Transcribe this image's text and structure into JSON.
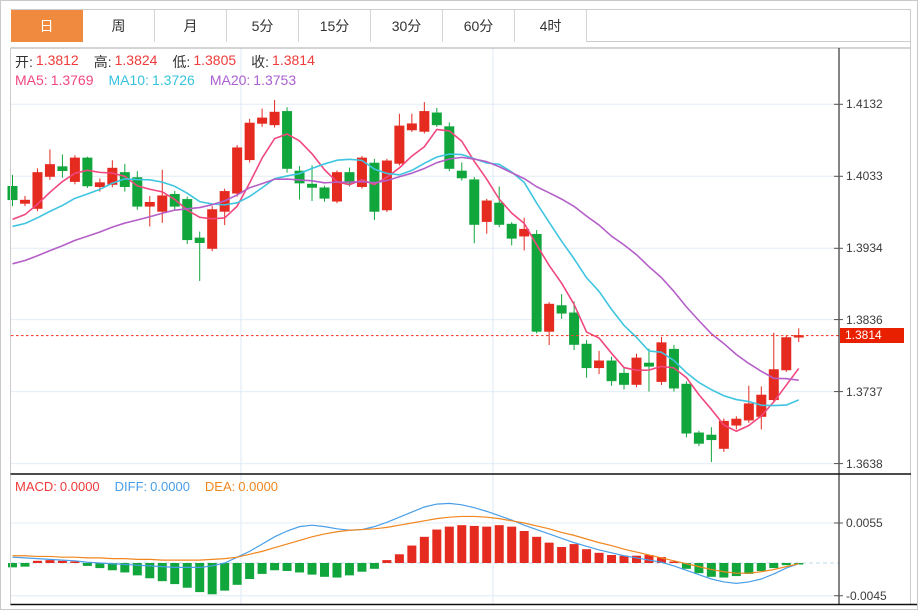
{
  "tabs": {
    "labels": [
      "日",
      "周",
      "月",
      "5分",
      "15分",
      "30分",
      "60分",
      "4时"
    ],
    "active": "日",
    "active_bg": "#f08a3e"
  },
  "legend": {
    "open_label": "开:",
    "open": "1.3812",
    "high_label": "高:",
    "high": "1.3824",
    "low_label": "低:",
    "low": "1.3805",
    "close_label": "收:",
    "close": "1.3814"
  },
  "ma_legend": {
    "ma5_label": "MA5:",
    "ma5": "1.3769",
    "ma10_label": "MA10:",
    "ma10": "1.3726",
    "ma20_label": "MA20:",
    "ma20": "1.3753"
  },
  "macd_legend": {
    "macd_label": "MACD:",
    "macd": "0.0000",
    "diff_label": "DIFF:",
    "diff": "0.0000",
    "dea_label": "DEA:",
    "dea": "0.0000"
  },
  "price_axis": {
    "labels": [
      "1.4132",
      "1.4033",
      "1.3934",
      "1.3836",
      "1.3737",
      "1.3638"
    ],
    "current": "1.3814"
  },
  "macd_axis": {
    "labels": [
      "0.0055",
      "-0.0045"
    ]
  },
  "colors": {
    "up": "#e52a20",
    "down": "#11a63c",
    "ma5": "#f0487e",
    "ma10": "#3fc5e0",
    "ma20": "#b55fc8",
    "diff": "#4a9ee8",
    "dea": "#f0861e",
    "tab_active": "#f08a3e",
    "price_tag_bg": "#e82000",
    "current_line": "#f4442e",
    "grid": "#e2ecf6",
    "vgrid": "#dde8f3",
    "zero_dash": "#bcd8ee",
    "axis_line": "#333333",
    "panel_border": "#111111",
    "side_border": "#cccccc",
    "red_text": "#ef3b3b"
  },
  "chart_data": {
    "type": "candlestick",
    "title": "",
    "ohlc_current": {
      "open": 1.3812,
      "high": 1.3824,
      "low": 1.3805,
      "close": 1.3814
    },
    "ma_values": {
      "ma5": 1.3769,
      "ma10": 1.3726,
      "ma20": 1.3753
    },
    "ma_periods": [
      5,
      10,
      20
    ],
    "ma_seeds": {
      "ma5": 1.3967,
      "ma10": 1.396,
      "ma20": 1.3908
    },
    "gridline_prices": [
      1.4132,
      1.4033,
      1.3934,
      1.3836,
      1.3737,
      1.3638
    ],
    "current_price": 1.3814,
    "ylim_main": [
      1.3623,
      1.4209
    ],
    "candles": [
      [
        1.4019,
        1.4035,
        1.3992,
        1.4001
      ],
      [
        1.3996,
        1.4006,
        1.3992,
        1.4
      ],
      [
        1.3989,
        1.4044,
        1.3985,
        1.4038
      ],
      [
        1.4033,
        1.407,
        1.4028,
        1.4049
      ],
      [
        1.4046,
        1.4063,
        1.4031,
        1.4041
      ],
      [
        1.4026,
        1.4062,
        1.4022,
        1.4058
      ],
      [
        1.4058,
        1.406,
        1.4017,
        1.402
      ],
      [
        1.4019,
        1.403,
        1.4012,
        1.4024
      ],
      [
        1.4022,
        1.4055,
        1.4018,
        1.4044
      ],
      [
        1.4038,
        1.405,
        1.4012,
        1.4019
      ],
      [
        1.4031,
        1.404,
        1.3987,
        1.3992
      ],
      [
        1.3992,
        1.4006,
        1.3964,
        1.3997
      ],
      [
        1.3985,
        1.4042,
        1.3969,
        1.4006
      ],
      [
        1.4008,
        1.4013,
        1.3986,
        1.3992
      ],
      [
        1.4001,
        1.4005,
        1.394,
        1.3946
      ],
      [
        1.3948,
        1.3957,
        1.3889,
        1.3942
      ],
      [
        1.3934,
        1.3992,
        1.393,
        1.3987
      ],
      [
        1.3985,
        1.4016,
        1.3966,
        1.4012
      ],
      [
        1.401,
        1.4076,
        1.4005,
        1.4072
      ],
      [
        1.4056,
        1.4112,
        1.4052,
        1.4106
      ],
      [
        1.4106,
        1.4126,
        1.4101,
        1.4113
      ],
      [
        1.4104,
        1.4138,
        1.41,
        1.4121
      ],
      [
        1.4122,
        1.4128,
        1.4038,
        1.4044
      ],
      [
        1.404,
        1.4047,
        1.4001,
        1.4024
      ],
      [
        1.4022,
        1.4048,
        1.3999,
        1.4018
      ],
      [
        1.4017,
        1.402,
        1.3998,
        1.4003
      ],
      [
        1.3999,
        1.4041,
        1.3996,
        1.4038
      ],
      [
        1.4038,
        1.4045,
        1.4019,
        1.4024
      ],
      [
        1.4019,
        1.4061,
        1.4016,
        1.4058
      ],
      [
        1.4051,
        1.4057,
        1.3973,
        1.3985
      ],
      [
        1.3987,
        1.4057,
        1.3984,
        1.4054
      ],
      [
        1.4051,
        1.4119,
        1.4048,
        1.4102
      ],
      [
        1.4097,
        1.4119,
        1.4094,
        1.4105
      ],
      [
        1.4095,
        1.4135,
        1.4092,
        1.4122
      ],
      [
        1.412,
        1.4127,
        1.4101,
        1.4104
      ],
      [
        1.4101,
        1.4107,
        1.404,
        1.4044
      ],
      [
        1.404,
        1.4052,
        1.4027,
        1.4031
      ],
      [
        1.4028,
        1.4032,
        1.3941,
        1.3967
      ],
      [
        1.3971,
        1.4002,
        1.3954,
        1.3999
      ],
      [
        1.3996,
        1.4019,
        1.3963,
        1.3967
      ],
      [
        1.3967,
        1.397,
        1.3938,
        1.3948
      ],
      [
        1.3951,
        1.3976,
        1.3931,
        1.396
      ],
      [
        1.3953,
        1.3959,
        1.3817,
        1.382
      ],
      [
        1.382,
        1.386,
        1.3801,
        1.3857
      ],
      [
        1.3855,
        1.3871,
        1.3837,
        1.3845
      ],
      [
        1.3845,
        1.3861,
        1.3794,
        1.3802
      ],
      [
        1.3802,
        1.3808,
        1.3756,
        1.377
      ],
      [
        1.377,
        1.3793,
        1.3761,
        1.3779
      ],
      [
        1.3779,
        1.3785,
        1.3745,
        1.3752
      ],
      [
        1.3762,
        1.3771,
        1.374,
        1.3747
      ],
      [
        1.3747,
        1.3789,
        1.3743,
        1.3783
      ],
      [
        1.3776,
        1.3796,
        1.3737,
        1.3772
      ],
      [
        1.3751,
        1.3812,
        1.3746,
        1.3804
      ],
      [
        1.3795,
        1.3801,
        1.3737,
        1.3742
      ],
      [
        1.3747,
        1.3751,
        1.3674,
        1.368
      ],
      [
        1.368,
        1.3683,
        1.3662,
        1.3666
      ],
      [
        1.3677,
        1.3688,
        1.364,
        1.3671
      ],
      [
        1.3659,
        1.37,
        1.3654,
        1.3696
      ],
      [
        1.3691,
        1.3703,
        1.3685,
        1.3699
      ],
      [
        1.3698,
        1.3745,
        1.3694,
        1.372
      ],
      [
        1.3703,
        1.3744,
        1.3685,
        1.3732
      ],
      [
        1.3726,
        1.3818,
        1.3723,
        1.3767
      ],
      [
        1.3767,
        1.3814,
        1.3764,
        1.3811
      ],
      [
        1.3812,
        1.3824,
        1.3805,
        1.3814
      ]
    ],
    "macd": {
      "gridlines": [
        0.0055,
        -0.0045
      ],
      "ylim": [
        -0.0056,
        0.0122
      ],
      "hist": [
        -0.0006,
        -0.0005,
        0.0003,
        0.0004,
        0.0003,
        0.0002,
        -0.0004,
        -0.0007,
        -0.001,
        -0.0013,
        -0.0017,
        -0.0021,
        -0.0025,
        -0.0029,
        -0.0034,
        -0.004,
        -0.0043,
        -0.0038,
        -0.003,
        -0.0022,
        -0.0015,
        -0.001,
        -0.0011,
        -0.0013,
        -0.0016,
        -0.0019,
        -0.002,
        -0.0017,
        -0.0012,
        -0.0008,
        0.0004,
        0.0012,
        0.0024,
        0.0036,
        0.0046,
        0.005,
        0.0052,
        0.0051,
        0.005,
        0.0052,
        0.005,
        0.0044,
        0.0036,
        0.0028,
        0.0022,
        0.0026,
        0.0019,
        0.0014,
        0.0011,
        0.001,
        0.001,
        0.0011,
        0.0008,
        0.0002,
        -0.0008,
        -0.0014,
        -0.0019,
        -0.002,
        -0.0018,
        -0.0015,
        -0.0011,
        -0.0007,
        -0.0003,
        -0.0001
      ],
      "diff": [
        0.0008,
        0.0007,
        0.0006,
        0.0005,
        0.0004,
        0.0003,
        0.0001,
        0.0,
        -0.0001,
        -0.0002,
        -0.0003,
        -0.0004,
        -0.0005,
        -0.0006,
        -0.0006,
        -0.0006,
        -0.0004,
        0.0,
        0.0008,
        0.0016,
        0.0026,
        0.0036,
        0.0044,
        0.005,
        0.0052,
        0.005,
        0.0047,
        0.0045,
        0.0046,
        0.005,
        0.0056,
        0.0063,
        0.007,
        0.0077,
        0.0081,
        0.0082,
        0.008,
        0.0076,
        0.0071,
        0.0065,
        0.0059,
        0.0052,
        0.0046,
        0.004,
        0.0034,
        0.0028,
        0.0023,
        0.0018,
        0.0014,
        0.001,
        0.0007,
        0.0004,
        0.0001,
        -0.0004,
        -0.001,
        -0.0016,
        -0.0022,
        -0.0026,
        -0.0028,
        -0.0026,
        -0.0022,
        -0.0015,
        -0.0007,
        -0.0001
      ],
      "dea": [
        0.001,
        0.001,
        0.0009,
        0.0009,
        0.0008,
        0.0008,
        0.0007,
        0.0007,
        0.0006,
        0.0006,
        0.0005,
        0.0005,
        0.0004,
        0.0004,
        0.0004,
        0.0004,
        0.0005,
        0.0006,
        0.0008,
        0.0012,
        0.0016,
        0.0021,
        0.0026,
        0.0031,
        0.0036,
        0.004,
        0.0043,
        0.0045,
        0.0046,
        0.0047,
        0.0049,
        0.0052,
        0.0055,
        0.0058,
        0.0061,
        0.0063,
        0.0064,
        0.0064,
        0.0063,
        0.0061,
        0.0058,
        0.0055,
        0.0051,
        0.0047,
        0.0042,
        0.0038,
        0.0033,
        0.0028,
        0.0024,
        0.0019,
        0.0015,
        0.0011,
        0.0007,
        0.0003,
        -0.0001,
        -0.0005,
        -0.0009,
        -0.0012,
        -0.0014,
        -0.0014,
        -0.0012,
        -0.0009,
        -0.0005,
        -0.0001
      ]
    }
  }
}
